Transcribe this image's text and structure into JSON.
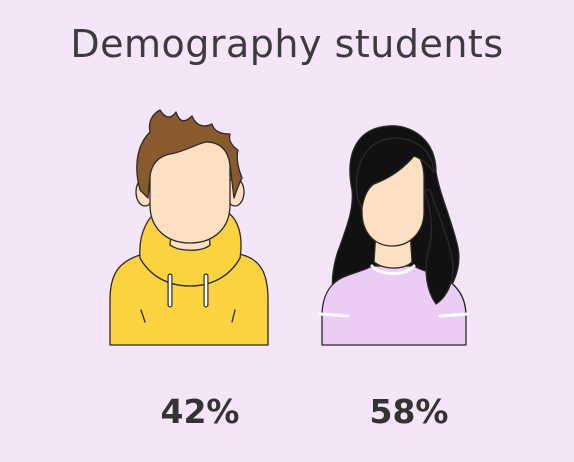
{
  "title": "Demography students",
  "chart_data": {
    "type": "pictogram",
    "categories": [
      "male",
      "female"
    ],
    "values": [
      42,
      58
    ],
    "labels": [
      "42%",
      "58%"
    ]
  },
  "colors": {
    "background": "#f5e5f8",
    "skin": "#fde0c2",
    "male_hair": "#8a5a2f",
    "male_hoodie": "#fbd23f",
    "female_hair": "#111111",
    "female_shirt": "#eaccf5",
    "text": "#333333"
  }
}
